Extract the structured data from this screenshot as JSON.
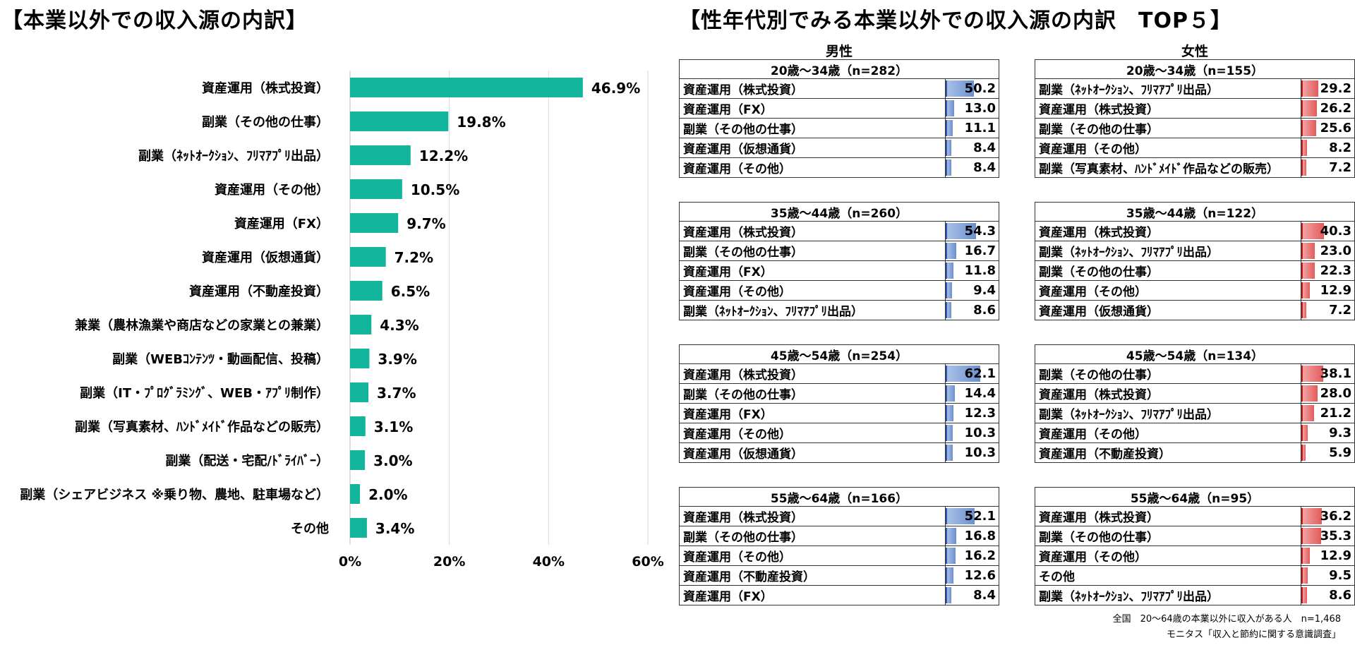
{
  "left": {
    "title": "【本業以外での収入源の内訳】",
    "chart_data": {
      "type": "bar",
      "orientation": "horizontal",
      "categories": [
        "資産運用（株式投資）",
        "副業（その他の仕事）",
        "副業（ﾈｯﾄｵｰｸｼｮﾝ、ﾌﾘﾏｱﾌﾟﾘ出品）",
        "資産運用（その他）",
        "資産運用（FX）",
        "資産運用（仮想通貨）",
        "資産運用（不動産投資）",
        "兼業（農林漁業や商店などの家業との兼業）",
        "副業（WEBｺﾝﾃﾝﾂ・動画配信、投稿）",
        "副業（IT・ﾌﾟﾛｸﾞﾗﾐﾝｸﾞ、WEB・ｱﾌﾟﾘ制作）",
        "副業（写真素材、ﾊﾝﾄﾞﾒｲﾄﾞ作品などの販売）",
        "副業（配送・宅配/ﾄﾞﾗｲﾊﾞｰ）",
        "副業（シェアビジネス ※乗り物、農地、駐車場など）",
        "その他"
      ],
      "values": [
        46.9,
        19.8,
        12.2,
        10.5,
        9.7,
        7.2,
        6.5,
        4.3,
        3.9,
        3.7,
        3.1,
        3.0,
        2.0,
        3.4
      ],
      "value_labels": [
        "46.9%",
        "19.8%",
        "12.2%",
        "10.5%",
        "9.7%",
        "7.2%",
        "6.5%",
        "4.3%",
        "3.9%",
        "3.7%",
        "3.1%",
        "3.0%",
        "2.0%",
        "3.4%"
      ],
      "xlim": [
        0,
        60
      ],
      "xticks": [
        0,
        20,
        40,
        60
      ],
      "xtick_labels": [
        "0%",
        "20%",
        "40%",
        "60%"
      ],
      "color": "#12b59c",
      "grid": "vertical"
    }
  },
  "right": {
    "title": "【性年代別でみる本業以外での収入源の内訳　TOP５】",
    "male_label": "男性",
    "female_label": "女性",
    "xmax": 100,
    "male": [
      {
        "header": "20歳～34歳（n=282）",
        "rows": [
          {
            "label": "資産運用（株式投資）",
            "value": 50.2
          },
          {
            "label": "資産運用（FX）",
            "value": 13.0
          },
          {
            "label": "副業（その他の仕事）",
            "value": 11.1
          },
          {
            "label": "資産運用（仮想通貨）",
            "value": 8.4
          },
          {
            "label": "資産運用（その他）",
            "value": 8.4
          }
        ]
      },
      {
        "header": "35歳～44歳（n=260）",
        "rows": [
          {
            "label": "資産運用（株式投資）",
            "value": 54.3
          },
          {
            "label": "副業（その他の仕事）",
            "value": 16.7
          },
          {
            "label": "資産運用（FX）",
            "value": 11.8
          },
          {
            "label": "資産運用（その他）",
            "value": 9.4
          },
          {
            "label": "副業（ﾈｯﾄｵｰｸｼｮﾝ、ﾌﾘﾏｱﾌﾟﾘ出品）",
            "value": 8.6
          }
        ]
      },
      {
        "header": "45歳～54歳（n=254）",
        "rows": [
          {
            "label": "資産運用（株式投資）",
            "value": 62.1
          },
          {
            "label": "副業（その他の仕事）",
            "value": 14.4
          },
          {
            "label": "資産運用（FX）",
            "value": 12.3
          },
          {
            "label": "資産運用（その他）",
            "value": 10.3
          },
          {
            "label": "資産運用（仮想通貨）",
            "value": 10.3
          }
        ]
      },
      {
        "header": "55歳～64歳（n=166）",
        "rows": [
          {
            "label": "資産運用（株式投資）",
            "value": 52.1
          },
          {
            "label": "副業（その他の仕事）",
            "value": 16.8
          },
          {
            "label": "資産運用（その他）",
            "value": 16.2
          },
          {
            "label": "資産運用（不動産投資）",
            "value": 12.6
          },
          {
            "label": "資産運用（FX）",
            "value": 8.4
          }
        ]
      }
    ],
    "female": [
      {
        "header": "20歳～34歳（n=155）",
        "rows": [
          {
            "label": "副業（ﾈｯﾄｵｰｸｼｮﾝ、ﾌﾘﾏｱﾌﾟﾘ出品）",
            "value": 29.2
          },
          {
            "label": "資産運用（株式投資）",
            "value": 26.2
          },
          {
            "label": "副業（その他の仕事）",
            "value": 25.6
          },
          {
            "label": "資産運用（その他）",
            "value": 8.2
          },
          {
            "label": "副業（写真素材、ﾊﾝﾄﾞﾒｲﾄﾞ作品などの販売）",
            "value": 7.2
          }
        ]
      },
      {
        "header": "35歳～44歳（n=122）",
        "rows": [
          {
            "label": "資産運用（株式投資）",
            "value": 40.3
          },
          {
            "label": "副業（ﾈｯﾄｵｰｸｼｮﾝ、ﾌﾘﾏｱﾌﾟﾘ出品）",
            "value": 23.0
          },
          {
            "label": "副業（その他の仕事）",
            "value": 22.3
          },
          {
            "label": "資産運用（その他）",
            "value": 12.9
          },
          {
            "label": "資産運用（仮想通貨）",
            "value": 7.2
          }
        ]
      },
      {
        "header": "45歳～54歳（n=134）",
        "rows": [
          {
            "label": "副業（その他の仕事）",
            "value": 38.1
          },
          {
            "label": "資産運用（株式投資）",
            "value": 28.0
          },
          {
            "label": "副業（ﾈｯﾄｵｰｸｼｮﾝ、ﾌﾘﾏｱﾌﾟﾘ出品）",
            "value": 21.2
          },
          {
            "label": "資産運用（その他）",
            "value": 9.3
          },
          {
            "label": "資産運用（不動産投資）",
            "value": 5.9
          }
        ]
      },
      {
        "header": "55歳～64歳（n=95）",
        "rows": [
          {
            "label": "資産運用（株式投資）",
            "value": 36.2
          },
          {
            "label": "副業（その他の仕事）",
            "value": 35.3
          },
          {
            "label": "資産運用（その他）",
            "value": 12.9
          },
          {
            "label": "その他",
            "value": 9.5
          },
          {
            "label": "副業（ﾈｯﾄｵｰｸｼｮﾝ、ﾌﾘﾏｱﾌﾟﾘ出品）",
            "value": 8.6
          }
        ]
      }
    ],
    "male_color": "#6b8fce",
    "female_color": "#e25b5b"
  },
  "notes": {
    "sample": "全国　20～64歳の本業以外に収入がある人　n=1,468",
    "source": "モニタス「収入と節約に関する意識調査」"
  }
}
